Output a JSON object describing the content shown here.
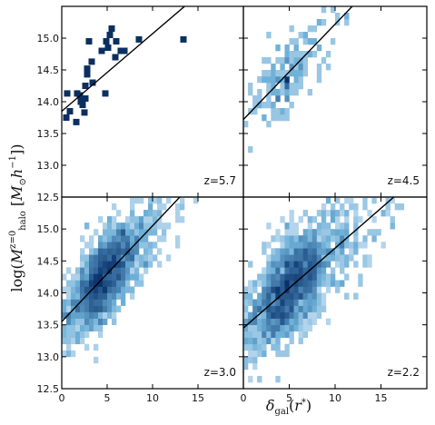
{
  "chart_data": {
    "type": "heatmap",
    "layout": "2x2 panels, shared axes",
    "xlabel": "δ_gal(r*)",
    "ylabel": "log(M_halo^(z=0) [M_⊙ h^-1])",
    "xlim": [
      0,
      20
    ],
    "ylim": [
      12.5,
      15.5
    ],
    "x_ticks": [
      "0",
      "5",
      "10",
      "15"
    ],
    "y_ticks": [
      "12.5",
      "13.0",
      "13.5",
      "14.0",
      "14.5",
      "15.0"
    ],
    "colormap": "Blues",
    "grid": false,
    "panels": [
      {
        "label": "z=5.7",
        "fit_line": {
          "intercept": 13.85,
          "slope": 0.122
        },
        "points": [
          [
            5.5,
            15.15
          ],
          [
            5.3,
            15.05
          ],
          [
            3.0,
            14.95
          ],
          [
            4.9,
            14.95
          ],
          [
            6.0,
            14.95
          ],
          [
            8.5,
            14.98
          ],
          [
            13.4,
            14.98
          ],
          [
            5.1,
            14.85
          ],
          [
            4.4,
            14.8
          ],
          [
            6.5,
            14.8
          ],
          [
            6.9,
            14.8
          ],
          [
            5.9,
            14.7
          ],
          [
            3.3,
            14.63
          ],
          [
            2.8,
            14.52
          ],
          [
            2.8,
            14.43
          ],
          [
            3.4,
            14.3
          ],
          [
            2.6,
            14.25
          ],
          [
            0.6,
            14.13
          ],
          [
            1.7,
            14.13
          ],
          [
            2.0,
            14.1
          ],
          [
            4.8,
            14.13
          ],
          [
            2.3,
            14.05
          ],
          [
            2.6,
            14.05
          ],
          [
            2.1,
            14.0
          ],
          [
            2.3,
            13.95
          ],
          [
            0.9,
            13.85
          ],
          [
            2.5,
            13.83
          ],
          [
            0.5,
            13.75
          ],
          [
            1.6,
            13.68
          ]
        ]
      },
      {
        "label": "z=4.5",
        "fit_line": {
          "intercept": 13.72,
          "slope": 0.15
        },
        "n_points": 180,
        "center_x": 4.0,
        "spread_x": 3.0,
        "spread_y": 0.28
      },
      {
        "label": "z=3.0",
        "fit_line": {
          "intercept": 13.55,
          "slope": 0.15
        },
        "n_points": 1800,
        "center_x": 4.2,
        "spread_x": 3.2,
        "spread_y": 0.32
      },
      {
        "label": "z=2.2",
        "fit_line": {
          "intercept": 13.45,
          "slope": 0.125
        },
        "n_points": 3000,
        "center_x": 4.5,
        "spread_x": 3.6,
        "spread_y": 0.36
      }
    ]
  }
}
